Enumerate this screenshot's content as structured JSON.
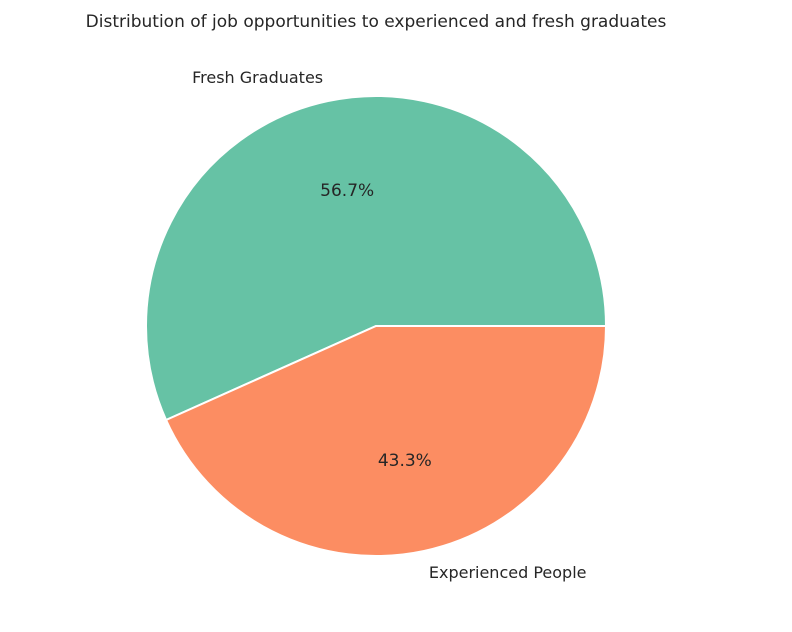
{
  "chart_data": {
    "type": "pie",
    "title": "Distribution of job opportunities to experienced and fresh graduates",
    "categories": [
      "Fresh Graduates",
      "Experienced People"
    ],
    "values": [
      56.7,
      43.3
    ],
    "value_labels": [
      "56.7%",
      "43.3%"
    ],
    "colors": [
      "#66c2a5",
      "#fc8d62"
    ],
    "start_angle_deg": 0,
    "direction": "counterclockwise",
    "wedge_edge_color": "#ffffff",
    "legend": "none"
  }
}
